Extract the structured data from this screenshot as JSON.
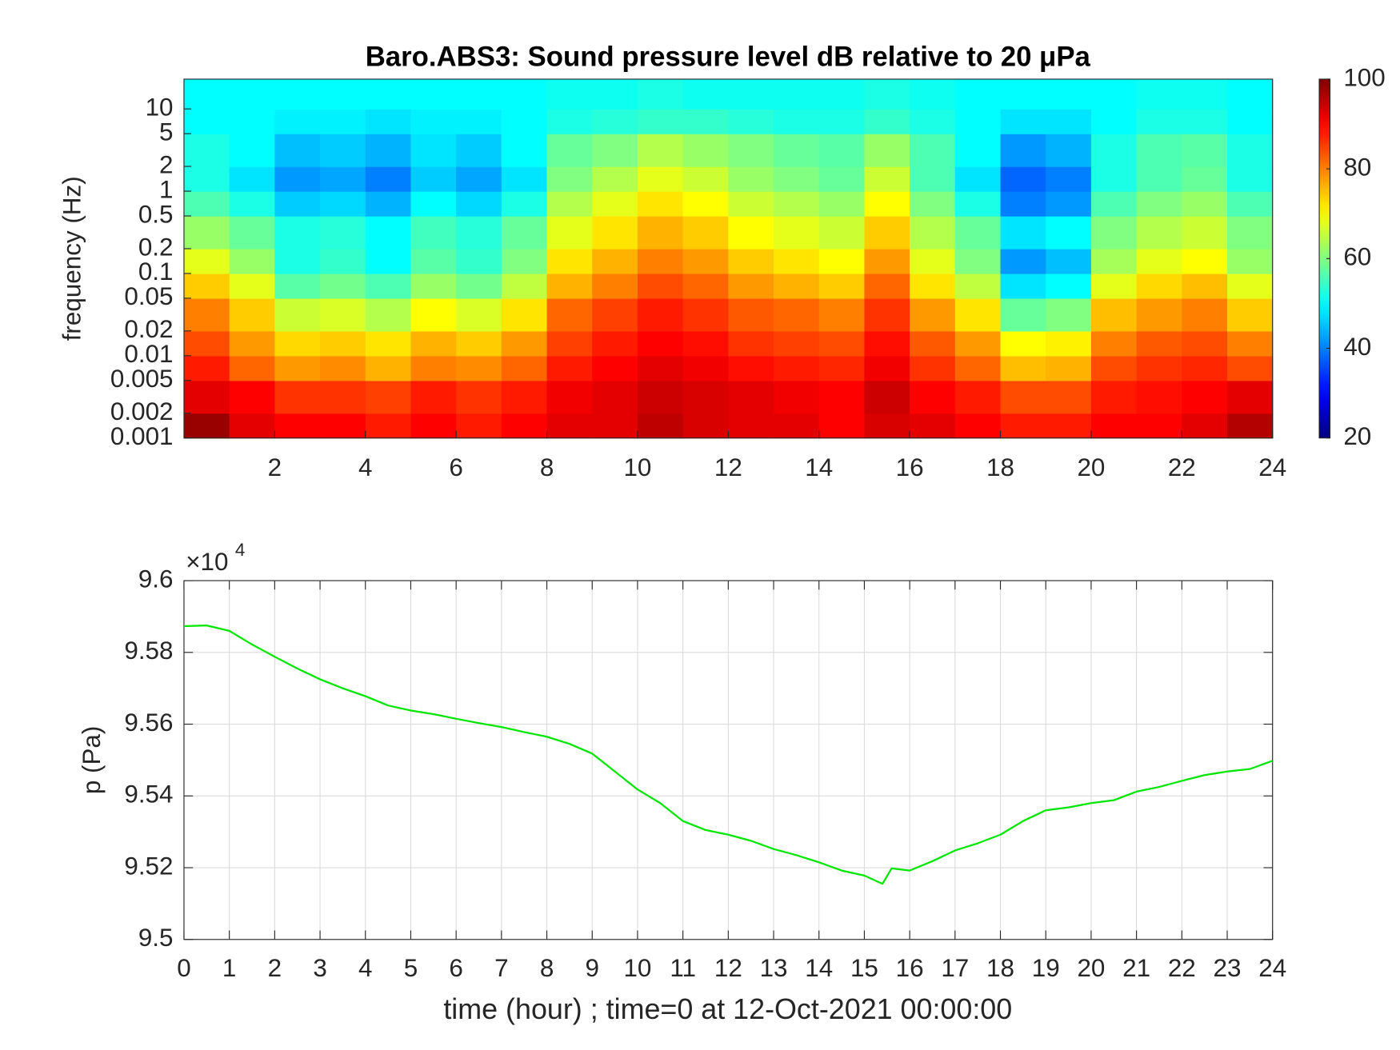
{
  "chart_data": [
    {
      "type": "heatmap",
      "title": "Baro.ABS3: Sound pressure level dB relative to 20 μPa",
      "y_label": "frequency (Hz)",
      "yscale": "log",
      "x_edges": [
        0,
        1,
        2,
        3,
        4,
        5,
        6,
        7,
        8,
        9,
        10,
        11,
        12,
        13,
        14,
        15,
        16,
        17,
        18,
        19,
        20,
        21,
        22,
        23,
        24
      ],
      "y_edges": [
        0.001,
        0.002,
        0.005,
        0.01,
        0.02,
        0.05,
        0.1,
        0.2,
        0.5,
        1,
        2,
        5,
        10,
        23
      ],
      "z": [
        [
          98,
          92,
          90,
          90,
          88,
          90,
          88,
          90,
          92,
          92,
          95,
          93,
          92,
          92,
          90,
          93,
          92,
          90,
          88,
          88,
          90,
          90,
          92,
          96
        ],
        [
          92,
          90,
          86,
          86,
          85,
          88,
          86,
          88,
          91,
          92,
          94,
          93,
          92,
          91,
          90,
          94,
          90,
          88,
          84,
          84,
          88,
          89,
          90,
          92
        ],
        [
          88,
          82,
          78,
          79,
          76,
          80,
          79,
          82,
          88,
          90,
          92,
          91,
          89,
          88,
          87,
          91,
          86,
          82,
          75,
          76,
          84,
          86,
          87,
          84
        ],
        [
          84,
          78,
          73,
          74,
          72,
          76,
          74,
          78,
          85,
          88,
          90,
          89,
          86,
          85,
          84,
          89,
          83,
          78,
          70,
          71,
          80,
          83,
          84,
          80
        ],
        [
          80,
          74,
          66,
          67,
          64,
          70,
          67,
          72,
          82,
          85,
          88,
          86,
          83,
          82,
          80,
          86,
          78,
          72,
          58,
          60,
          75,
          78,
          80,
          74
        ],
        [
          74,
          68,
          57,
          59,
          56,
          62,
          59,
          65,
          76,
          80,
          84,
          82,
          78,
          76,
          74,
          82,
          72,
          65,
          48,
          50,
          68,
          73,
          75,
          68
        ],
        [
          68,
          62,
          52,
          54,
          50,
          57,
          54,
          60,
          72,
          76,
          80,
          78,
          74,
          72,
          70,
          78,
          68,
          60,
          42,
          45,
          63,
          68,
          70,
          62
        ],
        [
          62,
          58,
          52,
          53,
          50,
          55,
          53,
          58,
          68,
          72,
          76,
          74,
          70,
          68,
          66,
          74,
          64,
          58,
          48,
          50,
          60,
          64,
          66,
          60
        ],
        [
          56,
          52,
          46,
          47,
          44,
          50,
          47,
          52,
          64,
          68,
          72,
          70,
          66,
          64,
          62,
          70,
          60,
          52,
          40,
          42,
          56,
          60,
          62,
          56
        ],
        [
          52,
          48,
          42,
          43,
          40,
          46,
          43,
          48,
          60,
          64,
          68,
          66,
          62,
          60,
          58,
          66,
          56,
          48,
          38,
          40,
          52,
          56,
          58,
          52
        ],
        [
          52,
          50,
          45,
          46,
          44,
          48,
          46,
          50,
          58,
          60,
          64,
          62,
          60,
          58,
          57,
          62,
          56,
          50,
          42,
          44,
          52,
          56,
          57,
          52
        ],
        [
          50,
          50,
          49,
          49,
          48,
          49,
          49,
          50,
          52,
          53,
          54,
          54,
          53,
          52,
          52,
          54,
          52,
          50,
          48,
          48,
          50,
          52,
          52,
          50
        ],
        [
          50,
          50,
          50,
          50,
          50,
          50,
          50,
          50,
          51,
          51,
          52,
          51,
          51,
          51,
          51,
          52,
          51,
          50,
          50,
          50,
          50,
          51,
          51,
          50
        ]
      ],
      "colormap": "jet",
      "clim": [
        20,
        100
      ],
      "cticks": [
        20,
        40,
        60,
        80,
        100
      ],
      "xlim": [
        0,
        24
      ],
      "xticks": [
        2,
        4,
        6,
        8,
        10,
        12,
        14,
        16,
        18,
        20,
        22,
        24
      ],
      "ylim": [
        0.001,
        23
      ],
      "yticks": [
        0.001,
        0.002,
        0.005,
        0.01,
        0.02,
        0.05,
        0.1,
        0.2,
        0.5,
        1,
        2,
        5,
        10
      ]
    },
    {
      "type": "line",
      "x_label": "time (hour) ; time=0 at 12-Oct-2021 00:00:00",
      "y_label": "p (Pa)",
      "y_multiplier": {
        "base": "×10",
        "exponent": "4"
      },
      "grid": true,
      "x": [
        0,
        0.5,
        1,
        1.5,
        2,
        2.5,
        3,
        3.5,
        4,
        4.5,
        5,
        5.5,
        6,
        6.5,
        7,
        7.5,
        8,
        8.5,
        9,
        9.5,
        10,
        10.5,
        11,
        11.5,
        12,
        12.5,
        13,
        13.5,
        14,
        14.5,
        15,
        15.4,
        15.6,
        16,
        16.5,
        17,
        17.5,
        18,
        18.5,
        19,
        19.5,
        20,
        20.5,
        21,
        21.5,
        22,
        22.5,
        23,
        23.5,
        24
      ],
      "series": [
        {
          "color": "#00e600",
          "values": [
            95873,
            95875,
            95860,
            95822,
            95788,
            95755,
            95725,
            95700,
            95678,
            95652,
            95638,
            95628,
            95615,
            95603,
            95592,
            95578,
            95565,
            95545,
            95518,
            95468,
            95418,
            95380,
            95330,
            95305,
            95292,
            95275,
            95252,
            95235,
            95215,
            95192,
            95178,
            95155,
            95198,
            95192,
            95218,
            95248,
            95268,
            95292,
            95330,
            95360,
            95368,
            95380,
            95388,
            95412,
            95425,
            95442,
            95458,
            95468,
            95475,
            95498
          ]
        }
      ],
      "xlim": [
        0,
        24
      ],
      "xticks": [
        0,
        1,
        2,
        3,
        4,
        5,
        6,
        7,
        8,
        9,
        10,
        11,
        12,
        13,
        14,
        15,
        16,
        17,
        18,
        19,
        20,
        21,
        22,
        23,
        24
      ],
      "ylim": [
        95000,
        96000
      ],
      "yticks": [
        {
          "value": 95000,
          "label": "9.5"
        },
        {
          "value": 95200,
          "label": "9.52"
        },
        {
          "value": 95400,
          "label": "9.54"
        },
        {
          "value": 95600,
          "label": "9.56"
        },
        {
          "value": 95800,
          "label": "9.58"
        },
        {
          "value": 96000,
          "label": "9.6"
        }
      ]
    }
  ]
}
